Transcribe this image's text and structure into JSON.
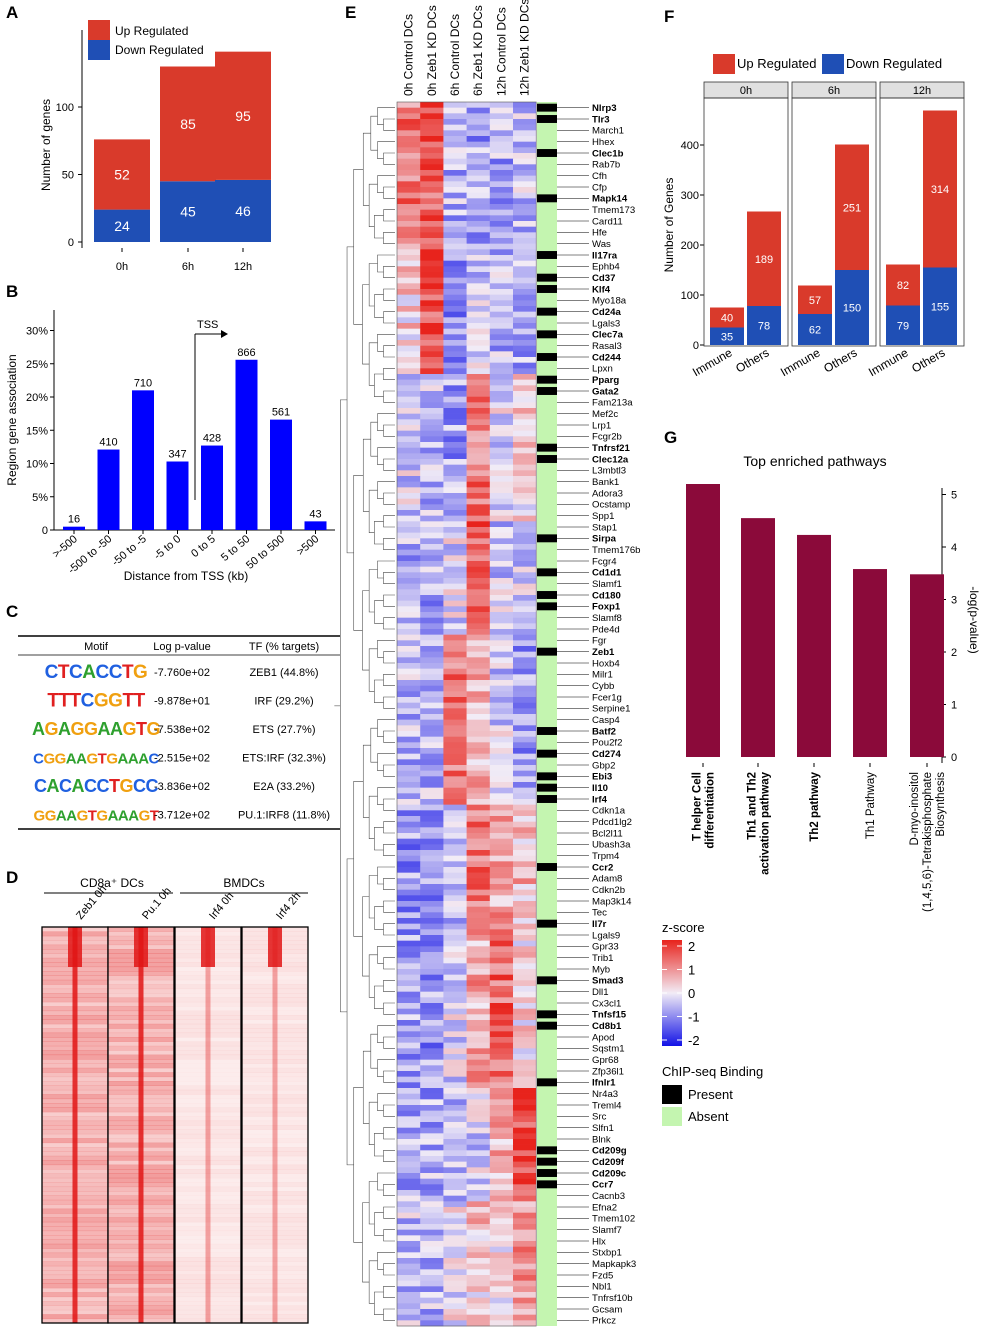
{
  "panels": {
    "A": "A",
    "B": "B",
    "C": "C",
    "D": "D",
    "E": "E",
    "F": "F",
    "G": "G"
  },
  "colors": {
    "up": "#d93a2b",
    "down": "#1f4fb5",
    "blue": "#0000ff",
    "crimson": "#8b0a3a",
    "chipPresent": "#000000",
    "chipAbsent": "#c4f5b0",
    "peak": "#e01515"
  },
  "chart_data": [
    {
      "id": "A",
      "type": "bar",
      "title": "",
      "ylabel": "Number of genes",
      "categories": [
        "0h",
        "6h",
        "12h"
      ],
      "ylim": [
        0,
        140
      ],
      "yticks": [
        "0",
        "50",
        "100"
      ],
      "series": [
        {
          "name": "Up Regulated",
          "values": [
            52,
            85,
            95
          ]
        },
        {
          "name": "Down Regulated",
          "values": [
            24,
            45,
            46
          ]
        }
      ],
      "legend": [
        "Up Regulated",
        "Down Regulated"
      ]
    },
    {
      "id": "B",
      "type": "bar",
      "ylabel": "Region gene association",
      "xlabel": "Distance from TSS (kb)",
      "categories": [
        ">-500",
        "-500 to -50",
        "-50 to -5",
        "-5 to 0",
        "0 to 5",
        "5 to 50",
        "50 to 500",
        ">500"
      ],
      "values": [
        0.5,
        12.1,
        21.0,
        10.3,
        12.7,
        25.6,
        16.6,
        1.3
      ],
      "labels": [
        "16",
        "410",
        "710",
        "347",
        "428",
        "866",
        "561",
        "43"
      ],
      "yticks": [
        "0",
        "5%",
        "10%",
        "15%",
        "20%",
        "25%",
        "30%"
      ],
      "ylim": [
        0,
        33
      ],
      "annotation": "TSS"
    },
    {
      "id": "F",
      "type": "bar",
      "ylabel": "Number of Genes",
      "facets": [
        "0h",
        "6h",
        "12h"
      ],
      "categories": [
        "Immune",
        "Others"
      ],
      "series": [
        {
          "name": "Up Regulated",
          "values": [
            [
              40,
              189
            ],
            [
              57,
              251
            ],
            [
              82,
              314
            ]
          ]
        },
        {
          "name": "Down Regulated",
          "values": [
            [
              35,
              78
            ],
            [
              62,
              150
            ],
            [
              79,
              155
            ]
          ]
        }
      ],
      "yticks": [
        "0",
        "100",
        "200",
        "300",
        "400"
      ],
      "ylim": [
        0,
        480
      ],
      "legend": [
        "Up Regulated",
        "Down Regulated"
      ]
    },
    {
      "id": "G",
      "type": "bar",
      "title": "Top enriched pathways",
      "ylabel": "-log(p-value)",
      "yticks": [
        "0",
        "1",
        "2",
        "3",
        "4",
        "5"
      ],
      "ylim": [
        0,
        5.5
      ],
      "categories": [
        {
          "lines": [
            "T helper Cell",
            "differentiation"
          ],
          "bold": true
        },
        {
          "lines": [
            "Th1 and Th2",
            "activation pathway"
          ],
          "bold": true
        },
        {
          "lines": [
            "Th2 pathway"
          ],
          "bold": true
        },
        {
          "lines": [
            "Th1 Pathway"
          ],
          "bold": false
        },
        {
          "lines": [
            "D-myo-inositol",
            "(1,4,5,6)-Tetrakisphosphate",
            "Biosynthesis"
          ],
          "bold": false
        }
      ],
      "values": [
        5.2,
        4.55,
        4.23,
        3.58,
        3.48
      ]
    }
  ],
  "motifTable": {
    "headers": [
      "Motif",
      "Log p-value",
      "TF (% targets)"
    ],
    "rows": [
      {
        "motif": "CTCACCTG",
        "pval": "-7.760e+02",
        "tf": "ZEB1 (44.8%)"
      },
      {
        "motif": "TTTCGGTT",
        "pval": "-9.878e+01",
        "tf": "IRF (29.2%)"
      },
      {
        "motif": "AGAGGAAGTG",
        "pval": "-7.538e+02",
        "tf": "ETS (27.7%)"
      },
      {
        "motif": "CGGAAGTGAAAC",
        "pval": "-2.515e+02",
        "tf": "ETS:IRF (32.3%)"
      },
      {
        "motif": "CACACCTGCC",
        "pval": "-3.836e+02",
        "tf": "E2A (33.2%)"
      },
      {
        "motif": "GGAAGTGAAAGT",
        "pval": "-3.712e+02",
        "tf": "PU.1:IRF8 (11.8%)"
      }
    ]
  },
  "panelD": {
    "group1": "CD8a⁺ DCs",
    "group2": "BMDCs",
    "tracks": [
      "Zeb1 0h",
      "Pu.1 0h",
      "Irf4 0h",
      "Irf4 2h"
    ]
  },
  "heatmap": {
    "columns": [
      "0h Control DCs",
      "0h Zeb1 KD DCs",
      "6h Control DCs",
      "6h Zeb1 KD DCs",
      "12h Control DCs",
      "12h Zeb1 KD DCs"
    ],
    "genes": [
      {
        "name": "Nlrp3",
        "b": 1
      },
      {
        "name": "Tlr3",
        "b": 1
      },
      {
        "name": "March1",
        "b": 0
      },
      {
        "name": "Hhex",
        "b": 0
      },
      {
        "name": "Clec1b",
        "b": 1
      },
      {
        "name": "Rab7b",
        "b": 0
      },
      {
        "name": "Cfh",
        "b": 0
      },
      {
        "name": "Cfp",
        "b": 0
      },
      {
        "name": "Mapk14",
        "b": 1
      },
      {
        "name": "Tmem173",
        "b": 0
      },
      {
        "name": "Card11",
        "b": 0
      },
      {
        "name": "Hfe",
        "b": 0
      },
      {
        "name": "Was",
        "b": 0
      },
      {
        "name": "Il17ra",
        "b": 1
      },
      {
        "name": "Ephb4",
        "b": 0
      },
      {
        "name": "Cd37",
        "b": 1
      },
      {
        "name": "Klf4",
        "b": 1
      },
      {
        "name": "Myo18a",
        "b": 0
      },
      {
        "name": "Cd24a",
        "b": 1
      },
      {
        "name": "Lgals3",
        "b": 0
      },
      {
        "name": "Clec7a",
        "b": 1
      },
      {
        "name": "Rasal3",
        "b": 0
      },
      {
        "name": "Cd244",
        "b": 1
      },
      {
        "name": "Lpxn",
        "b": 0
      },
      {
        "name": "Pparg",
        "b": 1
      },
      {
        "name": "Gata2",
        "b": 1
      },
      {
        "name": "Fam213a",
        "b": 0
      },
      {
        "name": "Mef2c",
        "b": 0
      },
      {
        "name": "Lrp1",
        "b": 0
      },
      {
        "name": "Fcgr2b",
        "b": 0
      },
      {
        "name": "Tnfrsf21",
        "b": 1
      },
      {
        "name": "Clec12a",
        "b": 1
      },
      {
        "name": "L3mbtl3",
        "b": 0
      },
      {
        "name": "Bank1",
        "b": 0
      },
      {
        "name": "Adora3",
        "b": 0
      },
      {
        "name": "Ocstamp",
        "b": 0
      },
      {
        "name": "Spp1",
        "b": 0
      },
      {
        "name": "Stap1",
        "b": 0
      },
      {
        "name": "Sirpa",
        "b": 1
      },
      {
        "name": "Tmem176b",
        "b": 0
      },
      {
        "name": "Fcgr4",
        "b": 0
      },
      {
        "name": "Cd1d1",
        "b": 1
      },
      {
        "name": "Slamf1",
        "b": 0
      },
      {
        "name": "Cd180",
        "b": 1
      },
      {
        "name": "Foxp1",
        "b": 1
      },
      {
        "name": "Slamf8",
        "b": 0
      },
      {
        "name": "Pde4d",
        "b": 0
      },
      {
        "name": "Fgr",
        "b": 0
      },
      {
        "name": "Zeb1",
        "b": 1
      },
      {
        "name": "Hoxb4",
        "b": 0
      },
      {
        "name": "Milr1",
        "b": 0
      },
      {
        "name": "Cybb",
        "b": 0
      },
      {
        "name": "Fcer1g",
        "b": 0
      },
      {
        "name": "Serpine1",
        "b": 0
      },
      {
        "name": "Casp4",
        "b": 0
      },
      {
        "name": "Batf2",
        "b": 1
      },
      {
        "name": "Pou2f2",
        "b": 0
      },
      {
        "name": "Cd274",
        "b": 1
      },
      {
        "name": "Gbp2",
        "b": 0
      },
      {
        "name": "Ebi3",
        "b": 1
      },
      {
        "name": "Il10",
        "b": 1
      },
      {
        "name": "Irf4",
        "b": 1
      },
      {
        "name": "Cdkn1a",
        "b": 0
      },
      {
        "name": "Pdcd1lg2",
        "b": 0
      },
      {
        "name": "Bcl2l11",
        "b": 0
      },
      {
        "name": "Ubash3a",
        "b": 0
      },
      {
        "name": "Trpm4",
        "b": 0
      },
      {
        "name": "Ccr2",
        "b": 1
      },
      {
        "name": "Adam8",
        "b": 0
      },
      {
        "name": "Cdkn2b",
        "b": 0
      },
      {
        "name": "Map3k14",
        "b": 0
      },
      {
        "name": "Tec",
        "b": 0
      },
      {
        "name": "Il7r",
        "b": 1
      },
      {
        "name": "Lgals9",
        "b": 0
      },
      {
        "name": "Gpr33",
        "b": 0
      },
      {
        "name": "Trib1",
        "b": 0
      },
      {
        "name": "Myb",
        "b": 0
      },
      {
        "name": "Smad3",
        "b": 1
      },
      {
        "name": "Dll1",
        "b": 0
      },
      {
        "name": "Cx3cl1",
        "b": 0
      },
      {
        "name": "Tnfsf15",
        "b": 1
      },
      {
        "name": "Cd8b1",
        "b": 1
      },
      {
        "name": "Apod",
        "b": 0
      },
      {
        "name": "Sqstm1",
        "b": 0
      },
      {
        "name": "Gpr68",
        "b": 0
      },
      {
        "name": "Zfp36l1",
        "b": 0
      },
      {
        "name": "Ifnlr1",
        "b": 1
      },
      {
        "name": "Nr4a3",
        "b": 0
      },
      {
        "name": "Treml4",
        "b": 0
      },
      {
        "name": "Src",
        "b": 0
      },
      {
        "name": "Slfn1",
        "b": 0
      },
      {
        "name": "Blnk",
        "b": 0
      },
      {
        "name": "Cd209g",
        "b": 1
      },
      {
        "name": "Cd209f",
        "b": 1
      },
      {
        "name": "Cd209c",
        "b": 1
      },
      {
        "name": "Ccr7",
        "b": 1
      },
      {
        "name": "Cacnb3",
        "b": 0
      },
      {
        "name": "Efna2",
        "b": 0
      },
      {
        "name": "Tmem102",
        "b": 0
      },
      {
        "name": "Slamf7",
        "b": 0
      },
      {
        "name": "Hlx",
        "b": 0
      },
      {
        "name": "Stxbp1",
        "b": 0
      },
      {
        "name": "Mapkapk3",
        "b": 0
      },
      {
        "name": "Fzd5",
        "b": 0
      },
      {
        "name": "Nbl1",
        "b": 0
      },
      {
        "name": "Tnfrsf10b",
        "b": 0
      },
      {
        "name": "Gcsam",
        "b": 0
      },
      {
        "name": "Prkcz",
        "b": 0
      }
    ],
    "zscore": {
      "title": "z-score",
      "ticks": [
        "2",
        "1",
        "0",
        "-1",
        "-2"
      ]
    },
    "chipLegend": {
      "title": "ChIP-seq Binding",
      "present": "Present",
      "absent": "Absent"
    }
  }
}
